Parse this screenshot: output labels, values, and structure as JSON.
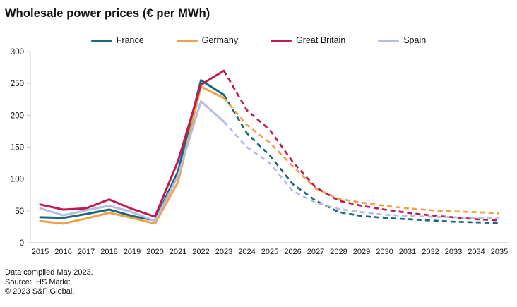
{
  "title": "Wholesale power prices (€ per MWh)",
  "footer": {
    "line1": "Data compiled May 2023.",
    "line2": "Source: IHS Markit.",
    "line3": "© 2023 S&P Global."
  },
  "chart_data": {
    "type": "line",
    "title": "Wholesale power prices (€ per MWh)",
    "xlabel": "",
    "ylabel": "",
    "x": [
      2015,
      2016,
      2017,
      2018,
      2019,
      2020,
      2021,
      2022,
      2023,
      2024,
      2025,
      2026,
      2027,
      2028,
      2029,
      2030,
      2031,
      2032,
      2033,
      2034,
      2035
    ],
    "ylim": [
      0,
      300
    ],
    "yticks": [
      0,
      50,
      100,
      150,
      200,
      250,
      300
    ],
    "grid": false,
    "legend_position": "top-center",
    "history_until": 2023,
    "forecast_style": "dashed",
    "axis_color": "#c6c6c6",
    "tick_label_color": "#111111",
    "series": [
      {
        "name": "France",
        "color": "#17697d",
        "values": [
          40,
          39,
          45,
          52,
          42,
          35,
          112,
          255,
          232,
          172,
          137,
          92,
          66,
          48,
          42,
          39,
          37,
          35,
          33,
          32,
          31
        ]
      },
      {
        "name": "Germany",
        "color": "#f2a149",
        "values": [
          34,
          30,
          38,
          47,
          39,
          30,
          95,
          245,
          227,
          185,
          157,
          120,
          85,
          69,
          63,
          58,
          54,
          51,
          49,
          48,
          46
        ]
      },
      {
        "name": "Great Britain",
        "color": "#c01a50",
        "values": [
          60,
          52,
          54,
          68,
          53,
          41,
          128,
          248,
          270,
          208,
          177,
          127,
          87,
          66,
          58,
          52,
          47,
          43,
          40,
          37,
          35
        ]
      },
      {
        "name": "Spain",
        "color": "#b7bce3",
        "values": [
          54,
          43,
          51,
          58,
          48,
          34,
          105,
          222,
          190,
          150,
          125,
          81,
          63,
          53,
          48,
          44,
          42,
          41,
          40,
          39,
          38
        ]
      }
    ]
  }
}
